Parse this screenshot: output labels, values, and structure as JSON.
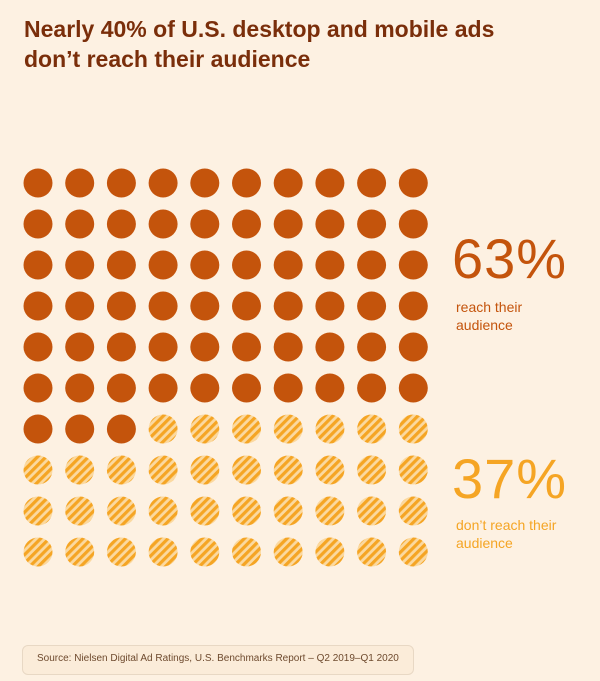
{
  "chart_data": {
    "type": "waffle",
    "title": "Nearly 40% of U.S. desktop and mobile ads don’t reach their audience",
    "categories": [
      "reach their audience",
      "don’t reach their audience"
    ],
    "values": [
      63,
      37
    ],
    "value_labels": [
      "63%",
      "37%"
    ],
    "colors": [
      "#c4540c",
      "#f5a524"
    ],
    "patterns": [
      "solid",
      "hatched"
    ],
    "source": "Source:  Nielsen Digital Ad Ratings, U.S. Benchmarks Report – Q2 2019–Q1 2020"
  }
}
